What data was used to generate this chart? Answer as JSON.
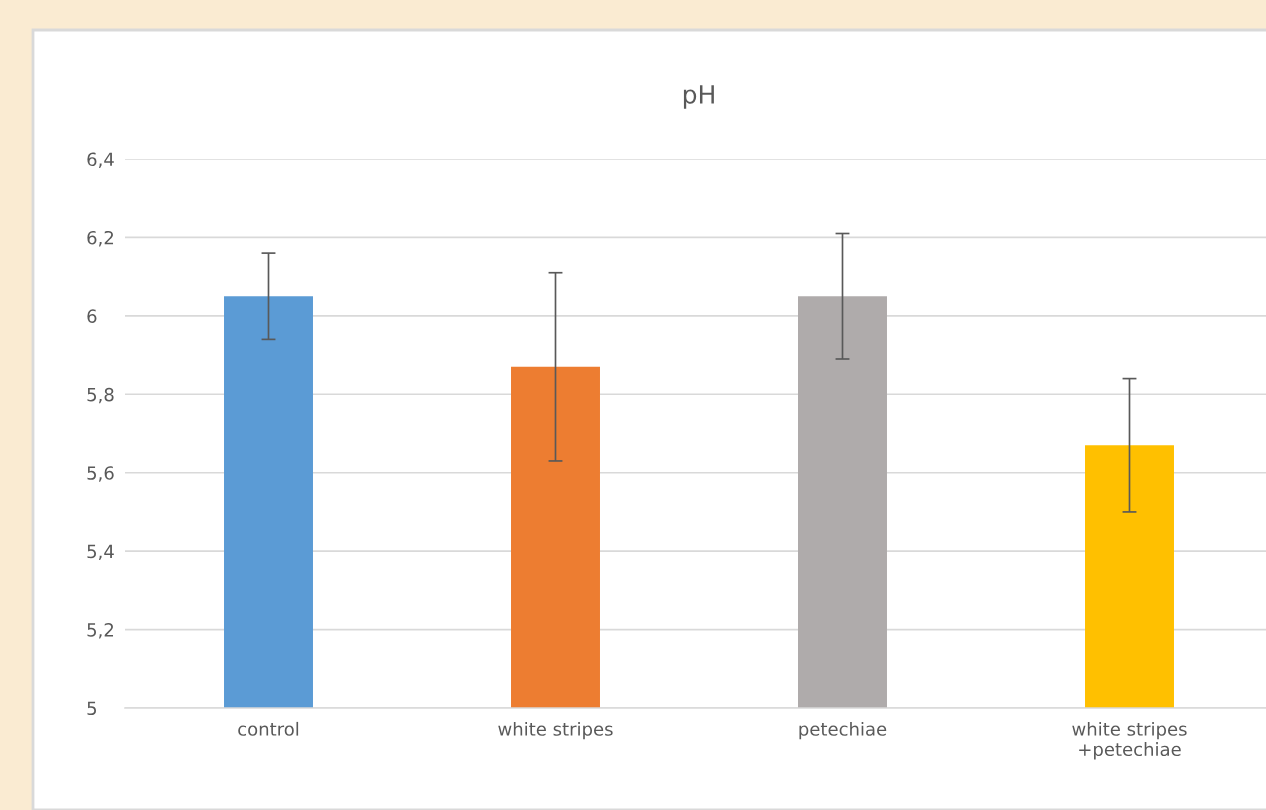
{
  "chart_data": {
    "type": "bar",
    "title": "pH",
    "categories": [
      "control",
      "white stripes",
      "petechiae",
      "white stripes\n+petechiae"
    ],
    "values": [
      6.05,
      5.87,
      6.05,
      5.67
    ],
    "colors": [
      "#5b9bd5",
      "#ed7d31",
      "#afabab",
      "#ffc000"
    ],
    "errors": [
      [
        5.94,
        6.16
      ],
      [
        5.63,
        6.11
      ],
      [
        5.89,
        6.21
      ],
      [
        5.5,
        5.84
      ]
    ],
    "ylim": [
      5,
      6.4
    ],
    "yticks": [
      5,
      {
        "value": 5.2,
        "label": "5,2"
      },
      {
        "value": 5.4,
        "label": "5,4"
      },
      {
        "value": 5.6,
        "label": "5,6"
      },
      {
        "value": 5.8,
        "label": "5,8"
      },
      6,
      {
        "value": 6.2,
        "label": "6,2"
      },
      {
        "value": 6.4,
        "label": "6,4"
      }
    ],
    "grid": "y",
    "legend": false
  }
}
